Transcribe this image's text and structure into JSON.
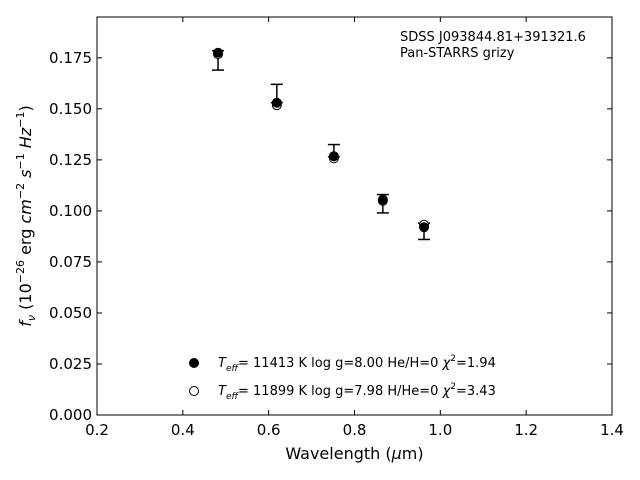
{
  "chart_data": {
    "type": "scatter",
    "annotation_lines": [
      "SDSS J093844.81+391321.6",
      "Pan-STARRS grizy"
    ],
    "xlabel": {
      "main": "Wavelength (",
      "mu": "μ",
      "unit": "m)"
    },
    "ylabel": {
      "f": "f",
      "sub_nu": "ν",
      "open": " (10",
      "sup1": "−26",
      "erg": " erg ",
      "cm": "cm",
      "sup2": "−2",
      "s": " s",
      "sup3": "−1",
      "hz": " Hz",
      "sup4": "−1",
      "close": ")"
    },
    "xlim": [
      0.2,
      1.4
    ],
    "ylim": [
      0.0,
      0.195
    ],
    "x_ticks": [
      0.2,
      0.4,
      0.6,
      0.8,
      1.0,
      1.2,
      1.4
    ],
    "x_tick_labels": [
      "0.2",
      "0.4",
      "0.6",
      "0.8",
      "1.0",
      "1.2",
      "1.4"
    ],
    "y_ticks": [
      0.0,
      0.025,
      0.05,
      0.075,
      0.1,
      0.125,
      0.15,
      0.175
    ],
    "y_tick_labels": [
      "0.000",
      "0.025",
      "0.050",
      "0.075",
      "0.100",
      "0.125",
      "0.150",
      "0.175"
    ],
    "grid": false,
    "legend_position": "bottom-center",
    "observed": {
      "x": [
        0.482,
        0.619,
        0.752,
        0.866,
        0.962
      ],
      "y": [
        0.1765,
        0.1545,
        0.1295,
        0.1035,
        0.0915
      ],
      "yerr_low": [
        0.0075,
        0.0015,
        0.003,
        0.0045,
        0.0055
      ],
      "yerr_high": [
        0.002,
        0.0075,
        0.003,
        0.0045,
        0.0025
      ]
    },
    "series": [
      {
        "marker": "filled",
        "label": {
          "T": "T",
          "sub": "eff",
          "rest": "= 11413 K  log g=8.00  He/H=0  ",
          "chi": "χ",
          "chi_sup": "2",
          "chi_val": "=1.94"
        },
        "x": [
          0.482,
          0.619,
          0.752,
          0.866,
          0.962
        ],
        "y": [
          0.1775,
          0.153,
          0.1268,
          0.1055,
          0.092
        ]
      },
      {
        "marker": "open",
        "label": {
          "T": "T",
          "sub": "eff",
          "rest": "= 11899 K  log g=7.98  H/He=0  ",
          "chi": "χ",
          "chi_sup": "2",
          "chi_val": "=3.43"
        },
        "x": [
          0.482,
          0.619,
          0.752,
          0.866,
          0.962
        ],
        "y": [
          0.1768,
          0.1518,
          0.1258,
          0.105,
          0.0932
        ]
      }
    ]
  }
}
